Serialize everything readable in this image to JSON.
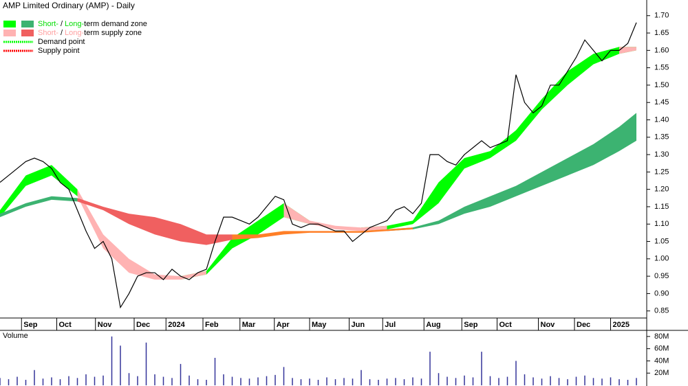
{
  "chart_data": {
    "type": "stock",
    "title": "AMP Limited Ordinary (AMP) - Daily",
    "legend": [
      {
        "colors": [
          "#00ff00",
          "#3cb371"
        ],
        "parts": [
          {
            "text": "Short-",
            "color": "#00dd00"
          },
          {
            "text": "/",
            "color": "#000000"
          },
          {
            "text": "Long-",
            "color": "#00dd00"
          },
          {
            "text": "term demand zone",
            "color": "#000000"
          }
        ]
      },
      {
        "colors": [
          "#ffb3b3",
          "#f06060"
        ],
        "parts": [
          {
            "text": "Short-",
            "color": "#ff9f9f"
          },
          {
            "text": "/",
            "color": "#000000"
          },
          {
            "text": "Long-",
            "color": "#ff9f9f"
          },
          {
            "text": "term supply zone",
            "color": "#000000"
          }
        ]
      },
      {
        "dotted": "#00ff00",
        "parts": [
          {
            "text": "Demand point",
            "color": "#000000"
          }
        ]
      },
      {
        "dotted": "#ff0000",
        "parts": [
          {
            "text": "Supply point",
            "color": "#000000"
          }
        ]
      }
    ],
    "xlim": [
      0,
      75
    ],
    "xticks": [
      {
        "value": 2.5,
        "label": "Sep"
      },
      {
        "value": 6.6,
        "label": "Oct"
      },
      {
        "value": 11.1,
        "label": "Nov"
      },
      {
        "value": 15.6,
        "label": "Dec"
      },
      {
        "value": 19.3,
        "label": "2024"
      },
      {
        "value": 23.6,
        "label": "Feb"
      },
      {
        "value": 27.9,
        "label": "Mar"
      },
      {
        "value": 31.9,
        "label": "Apr"
      },
      {
        "value": 36,
        "label": "May"
      },
      {
        "value": 40.6,
        "label": "Jun"
      },
      {
        "value": 44.5,
        "label": "Jul"
      },
      {
        "value": 49.3,
        "label": "Aug"
      },
      {
        "value": 53.7,
        "label": "Sep"
      },
      {
        "value": 57.8,
        "label": "Oct"
      },
      {
        "value": 62.6,
        "label": "Nov"
      },
      {
        "value": 66.8,
        "label": "Dec"
      },
      {
        "value": 71,
        "label": "2025"
      }
    ],
    "ylim": [
      0.8,
      1.745
    ],
    "yticks": [
      0.85,
      {
        "value": 0.9,
        "label": "0.90"
      },
      0.95,
      {
        "value": 1.0,
        "label": "1.00"
      },
      1.05,
      {
        "value": 1.1,
        "label": "1.10"
      },
      1.15,
      {
        "value": 1.2,
        "label": "1.20"
      },
      1.25,
      {
        "value": 1.3,
        "label": "1.30"
      },
      1.35,
      {
        "value": 1.4,
        "label": "1.40"
      },
      1.45,
      {
        "value": 1.5,
        "label": "1.50"
      },
      1.55,
      {
        "value": 1.6,
        "label": "1.60"
      },
      1.65,
      {
        "value": 1.7,
        "label": "1.70"
      }
    ],
    "x": [
      0,
      1,
      2,
      3,
      4,
      5,
      6,
      7,
      8,
      9,
      10,
      11,
      12,
      13,
      14,
      15,
      16,
      17,
      18,
      19,
      20,
      21,
      22,
      23,
      24,
      25,
      26,
      27,
      28,
      29,
      30,
      31,
      32,
      33,
      34,
      35,
      36,
      37,
      38,
      39,
      40,
      41,
      42,
      43,
      44,
      45,
      46,
      47,
      48,
      49,
      50,
      51,
      52,
      53,
      54,
      55,
      56,
      57,
      58,
      59,
      60,
      61,
      62,
      63,
      64,
      65,
      66,
      67,
      68,
      69,
      70,
      71,
      72,
      73,
      74
    ],
    "series": [
      {
        "color": "#000000",
        "values": [
          1.22,
          1.24,
          1.26,
          1.28,
          1.29,
          1.28,
          1.26,
          1.22,
          1.2,
          1.14,
          1.08,
          1.03,
          1.05,
          1.0,
          0.86,
          0.9,
          0.95,
          0.96,
          0.96,
          0.94,
          0.97,
          0.95,
          0.94,
          0.96,
          0.97,
          1.05,
          1.12,
          1.12,
          1.11,
          1.1,
          1.12,
          1.15,
          1.18,
          1.17,
          1.1,
          1.09,
          1.1,
          1.1,
          1.09,
          1.08,
          1.08,
          1.05,
          1.07,
          1.09,
          1.1,
          1.11,
          1.14,
          1.15,
          1.13,
          1.16,
          1.3,
          1.3,
          1.28,
          1.27,
          1.3,
          1.32,
          1.34,
          1.32,
          1.33,
          1.34,
          1.53,
          1.45,
          1.42,
          1.44,
          1.5,
          1.5,
          1.54,
          1.58,
          1.63,
          1.6,
          1.57,
          1.6,
          1.6,
          1.62,
          1.68
        ]
      }
    ],
    "band_x": [
      0,
      3,
      6,
      9,
      12,
      15,
      18,
      21,
      24,
      27,
      30,
      33,
      36,
      39,
      42,
      45,
      48,
      51,
      54,
      57,
      60,
      63,
      66,
      69,
      72,
      74
    ],
    "bands": [
      {
        "color": "#00ff00",
        "upper": [
          1.14,
          1.24,
          1.27,
          1.2,
          null,
          null,
          null,
          0.95,
          0.965,
          1.06,
          1.11,
          1.16,
          1.11,
          null,
          1.09,
          1.095,
          1.11,
          1.22,
          1.29,
          1.31,
          1.37,
          1.46,
          1.54,
          1.59,
          1.61,
          1.61
        ],
        "lower": [
          1.12,
          1.21,
          1.24,
          1.18,
          null,
          null,
          null,
          0.94,
          0.955,
          1.03,
          1.07,
          1.12,
          1.1,
          null,
          1.08,
          1.085,
          1.1,
          1.16,
          1.26,
          1.29,
          1.34,
          1.43,
          1.5,
          1.56,
          1.59,
          1.6
        ]
      },
      {
        "color": "#ffb3b3",
        "upper": [
          null,
          null,
          null,
          1.2,
          1.07,
          1.0,
          0.955,
          0.95,
          0.965,
          null,
          null,
          1.16,
          1.11,
          1.095,
          1.09,
          1.095,
          null,
          null,
          null,
          null,
          null,
          null,
          null,
          null,
          1.61,
          1.61
        ],
        "lower": [
          null,
          null,
          null,
          1.18,
          1.03,
          0.96,
          0.94,
          0.94,
          0.955,
          null,
          null,
          1.12,
          1.1,
          1.085,
          1.08,
          1.085,
          null,
          null,
          null,
          null,
          null,
          null,
          null,
          null,
          1.59,
          1.6
        ]
      },
      {
        "color": "#3cb371",
        "upper": [
          1.13,
          1.16,
          1.18,
          1.175,
          null,
          null,
          null,
          null,
          null,
          null,
          null,
          null,
          null,
          null,
          null,
          1.085,
          1.09,
          1.11,
          1.15,
          1.18,
          1.21,
          1.25,
          1.29,
          1.33,
          1.38,
          1.42
        ],
        "lower": [
          1.12,
          1.15,
          1.17,
          1.165,
          null,
          null,
          null,
          null,
          null,
          null,
          null,
          null,
          null,
          null,
          null,
          1.08,
          1.085,
          1.1,
          1.13,
          1.15,
          1.18,
          1.21,
          1.24,
          1.27,
          1.31,
          1.34
        ]
      },
      {
        "color": "#f06060",
        "upper": [
          null,
          null,
          null,
          1.175,
          1.15,
          1.13,
          1.12,
          1.1,
          1.07,
          1.07,
          null,
          null,
          null,
          null,
          null,
          null,
          null,
          null,
          null,
          null,
          null,
          null,
          null,
          null,
          null,
          null
        ],
        "lower": [
          null,
          null,
          null,
          1.165,
          1.14,
          1.1,
          1.07,
          1.05,
          1.04,
          1.055,
          null,
          null,
          null,
          null,
          null,
          null,
          null,
          null,
          null,
          null,
          null,
          null,
          null,
          null,
          null,
          null
        ]
      },
      {
        "color": "#ff7f27",
        "upper": [
          null,
          null,
          null,
          null,
          null,
          null,
          null,
          null,
          null,
          1.07,
          1.07,
          1.08,
          1.08,
          1.08,
          1.08,
          1.085,
          1.09,
          null,
          null,
          null,
          null,
          null,
          null,
          null,
          null,
          null
        ],
        "lower": [
          null,
          null,
          null,
          null,
          null,
          null,
          null,
          null,
          null,
          1.055,
          1.06,
          1.07,
          1.075,
          1.075,
          1.075,
          1.08,
          1.085,
          null,
          null,
          null,
          null,
          null,
          null,
          null,
          null,
          null
        ]
      }
    ],
    "volume": {
      "label": "Volume",
      "label_color": "#660099",
      "color": "#333399",
      "values": [
        12,
        10,
        14,
        9,
        25,
        11,
        13,
        10,
        15,
        12,
        18,
        14,
        16,
        80,
        65,
        20,
        15,
        70,
        18,
        14,
        12,
        35,
        16,
        10,
        9,
        45,
        18,
        14,
        12,
        11,
        13,
        15,
        17,
        30,
        12,
        10,
        11,
        9,
        13,
        10,
        12,
        11,
        25,
        10,
        9,
        11,
        12,
        10,
        13,
        11,
        55,
        20,
        14,
        12,
        16,
        13,
        55,
        15,
        12,
        14,
        40,
        18,
        13,
        11,
        15,
        12,
        10,
        14,
        16,
        12,
        11,
        13,
        10,
        9,
        12
      ],
      "ylim": [
        0,
        90
      ],
      "yticks": [
        {
          "value": 20,
          "label": "20M"
        },
        {
          "value": 40,
          "label": "40M"
        },
        {
          "value": 60,
          "label": "60M"
        },
        {
          "value": 80,
          "label": "80M"
        }
      ]
    }
  }
}
